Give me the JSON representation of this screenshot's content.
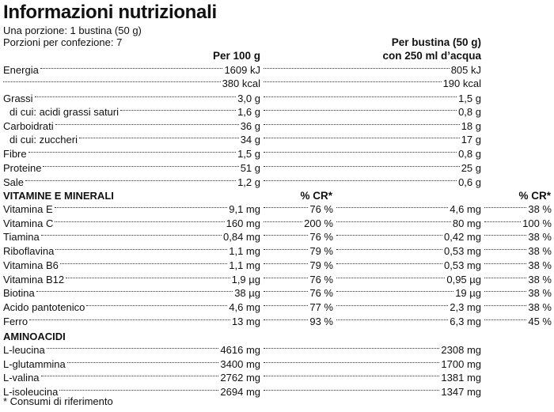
{
  "title": "Informazioni nutrizionali",
  "serving": "Una porzione: 1 bustina (50 g)",
  "servings_per_pack": "Porzioni per confezione: 7",
  "col_headers": {
    "per100": "Per 100 g",
    "per_serving_line1": "Per bustina (50 g)",
    "per_serving_line2": "con 250 ml d’acqua"
  },
  "nutrients": [
    {
      "label": "Energia",
      "v100": "1609 kJ",
      "vserv": "805 kJ"
    },
    {
      "label": "",
      "v100": "380 kcal",
      "vserv": "190 kcal"
    },
    {
      "label": "Grassi",
      "v100": "3,0 g",
      "vserv": "1,5 g"
    },
    {
      "label": "di cui: acidi grassi saturi",
      "v100": "1,6 g",
      "vserv": "0,8 g"
    },
    {
      "label": "Carboidrati",
      "v100": "36 g",
      "vserv": "18 g"
    },
    {
      "label": "di cui: zuccheri",
      "v100": "34 g",
      "vserv": "17 g"
    },
    {
      "label": "Fibre",
      "v100": "1,5 g",
      "vserv": "0,8 g"
    },
    {
      "label": "Proteine",
      "v100": "51 g",
      "vserv": "25 g"
    },
    {
      "label": "Sale",
      "v100": "1,2 g",
      "vserv": "0,6 g"
    }
  ],
  "vitamins_header": "VITAMINE E MINERALI",
  "cr_header": "% CR*",
  "vitamins": [
    {
      "label": "Vitamina E",
      "v100": "9,1 mg",
      "cr100": "76 %",
      "vserv": "4,6 mg",
      "crserv": "38 %"
    },
    {
      "label": "Vitamina C",
      "v100": "160 mg",
      "cr100": "200 %",
      "vserv": "80 mg",
      "crserv": "100 %"
    },
    {
      "label": "Tiamina",
      "v100": "0,84 mg",
      "cr100": "76 %",
      "vserv": "0,42 mg",
      "crserv": "38 %"
    },
    {
      "label": "Riboflavina",
      "v100": "1,1 mg",
      "cr100": "79 %",
      "vserv": "0,53 mg",
      "crserv": "38 %"
    },
    {
      "label": "Vitamina B6",
      "v100": "1,1 mg",
      "cr100": "79 %",
      "vserv": "0,53 mg",
      "crserv": "38 %"
    },
    {
      "label": "Vitamina B12",
      "v100": "1,9 µg",
      "cr100": "76 %",
      "vserv": "0,95 µg",
      "crserv": "38 %"
    },
    {
      "label": "Biotina",
      "v100": "38 µg",
      "cr100": "76 %",
      "vserv": "19 µg",
      "crserv": "38 %"
    },
    {
      "label": "Acido pantotenico",
      "v100": "4,6 mg",
      "cr100": "77 %",
      "vserv": "2,3 mg",
      "crserv": "38 %"
    },
    {
      "label": "Ferro",
      "v100": "13 mg",
      "cr100": "93 %",
      "vserv": "6,3 mg",
      "crserv": "45 %"
    }
  ],
  "amino_header": "AMINOACIDI",
  "amino": [
    {
      "label": "L-leucina",
      "v100": "4616 mg",
      "vserv": "2308 mg"
    },
    {
      "label": "L-glutammina",
      "v100": "3400 mg",
      "vserv": "1700 mg"
    },
    {
      "label": "L-valina",
      "v100": "2762 mg",
      "vserv": "1381 mg"
    },
    {
      "label": "L-isoleucina",
      "v100": "2694 mg",
      "vserv": "1347 mg"
    }
  ],
  "footnote": "* Consumi di riferimento"
}
